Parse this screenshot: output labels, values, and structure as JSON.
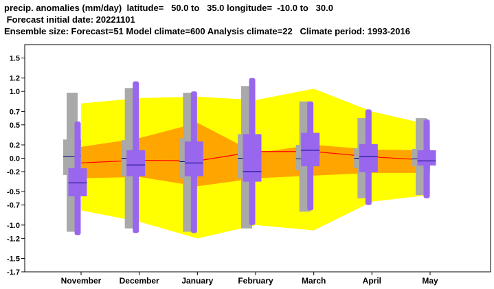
{
  "header": {
    "line1": "precip. anomalies (mm/day)  latitude=   50.0 to   35.0 longitude=  -10.0 to   30.0",
    "line2": " Forecast initial date: 20221101",
    "line3": "Ensemble size: Forecast=51 Model climate=600 Analysis climate=22   Climate period: 1993-2016"
  },
  "chart_data": {
    "type": "box",
    "categories": [
      "November",
      "December",
      "January",
      "February",
      "March",
      "April",
      "May"
    ],
    "ylim": [
      -1.7,
      1.7
    ],
    "yticks": [
      -1.7,
      -1.5,
      -1.2,
      -1.0,
      -0.7,
      -0.5,
      -0.2,
      0.0,
      0.2,
      0.5,
      0.7,
      1.0,
      1.2,
      1.5
    ],
    "ytick_labels": [
      "-1.7",
      "-1.5",
      "-1.2",
      "-1.0",
      "-0.7",
      "-0.5",
      "-0.2",
      "0.0",
      "0.2",
      "0.5",
      "0.7",
      "1.0",
      "1.2",
      "1.5"
    ],
    "model_climate_outer_band": {
      "lower": [
        -0.78,
        -0.95,
        -1.2,
        -1.0,
        -1.08,
        -0.65,
        -0.55
      ],
      "upper": [
        0.82,
        0.9,
        0.92,
        0.87,
        1.04,
        0.7,
        0.5
      ]
    },
    "model_climate_inner_band": {
      "lower": [
        -0.3,
        -0.28,
        -0.42,
        -0.3,
        -0.26,
        -0.22,
        -0.22
      ],
      "upper": [
        0.17,
        0.3,
        0.53,
        0.08,
        0.2,
        0.13,
        0.12
      ]
    },
    "model_climate_median": [
      -0.07,
      -0.03,
      -0.04,
      0.1,
      0.1,
      0.02,
      -0.03
    ],
    "analysis_climate": [
      {
        "min": -1.1,
        "q_low": -0.25,
        "median": 0.03,
        "q_high": 0.28,
        "max": 0.98
      },
      {
        "min": -1.05,
        "q_low": -0.27,
        "median": 0.0,
        "q_high": 0.27,
        "max": 1.05
      },
      {
        "min": -1.1,
        "q_low": -0.3,
        "median": -0.05,
        "q_high": 0.3,
        "max": 0.98
      },
      {
        "min": -1.05,
        "q_low": -0.3,
        "median": 0.0,
        "q_high": 0.36,
        "max": 1.08
      },
      {
        "min": -0.8,
        "q_low": -0.18,
        "median": -0.01,
        "q_high": 0.2,
        "max": 0.85
      },
      {
        "min": -0.6,
        "q_low": -0.15,
        "median": 0.0,
        "q_high": 0.15,
        "max": 0.6
      },
      {
        "min": -0.55,
        "q_low": -0.12,
        "median": -0.01,
        "q_high": 0.14,
        "max": 0.6
      }
    ],
    "forecast": [
      {
        "min": -1.15,
        "q_low": -0.57,
        "median": -0.37,
        "q_high": -0.15,
        "max": 0.55
      },
      {
        "min": -1.12,
        "q_low": -0.27,
        "median": -0.1,
        "q_high": 0.12,
        "max": 1.15
      },
      {
        "min": -1.12,
        "q_low": -0.27,
        "median": -0.07,
        "q_high": 0.25,
        "max": 1.0
      },
      {
        "min": -1.0,
        "q_low": -0.35,
        "median": -0.2,
        "q_high": 0.36,
        "max": 1.2
      },
      {
        "min": -0.78,
        "q_low": -0.12,
        "median": 0.12,
        "q_high": 0.38,
        "max": 0.85
      },
      {
        "min": -0.7,
        "q_low": -0.21,
        "median": 0.02,
        "q_high": 0.21,
        "max": 0.73
      },
      {
        "min": -0.6,
        "q_low": -0.11,
        "median": -0.04,
        "q_high": 0.12,
        "max": 0.58
      }
    ],
    "colors": {
      "outer_band": "#ffff00",
      "inner_band": "#ffa500",
      "median_line": "#ff0000",
      "analysis_box": "#a9a9a9",
      "forecast_box": "#9966ee",
      "box_median": "#000080",
      "axis": "#000000"
    },
    "grid": false,
    "legend": "none"
  }
}
